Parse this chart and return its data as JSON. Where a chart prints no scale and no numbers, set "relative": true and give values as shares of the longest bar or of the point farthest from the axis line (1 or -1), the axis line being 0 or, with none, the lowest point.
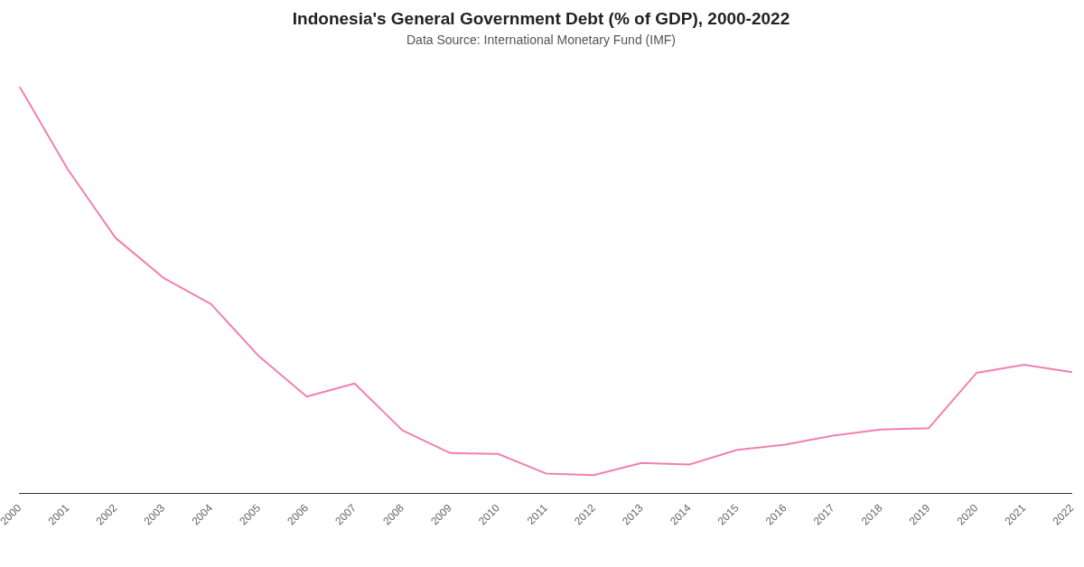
{
  "chart_data": {
    "type": "line",
    "title": "Indonesia's General Government Debt (% of GDP), 2000-2022",
    "subtitle": "Data Source: International Monetary Fund (IMF)",
    "relative": true,
    "categories": [
      "2000",
      "2001",
      "2002",
      "2003",
      "2004",
      "2005",
      "2006",
      "2007",
      "2008",
      "2009",
      "2010",
      "2011",
      "2012",
      "2013",
      "2014",
      "2015",
      "2016",
      "2017",
      "2018",
      "2019",
      "2020",
      "2021",
      "2022"
    ],
    "series": [
      {
        "color": "#f27fb2",
        "values": [
          1,
          0.798,
          0.629,
          0.531,
          0.466,
          0.338,
          0.239,
          0.271,
          0.156,
          0.1,
          0.098,
          0.05,
          0.046,
          0.076,
          0.072,
          0.108,
          0.121,
          0.143,
          0.158,
          0.161,
          0.297,
          0.317,
          0.299
        ]
      }
    ],
    "grid": false,
    "legend": false,
    "marker": "none",
    "line_style": "solid"
  }
}
